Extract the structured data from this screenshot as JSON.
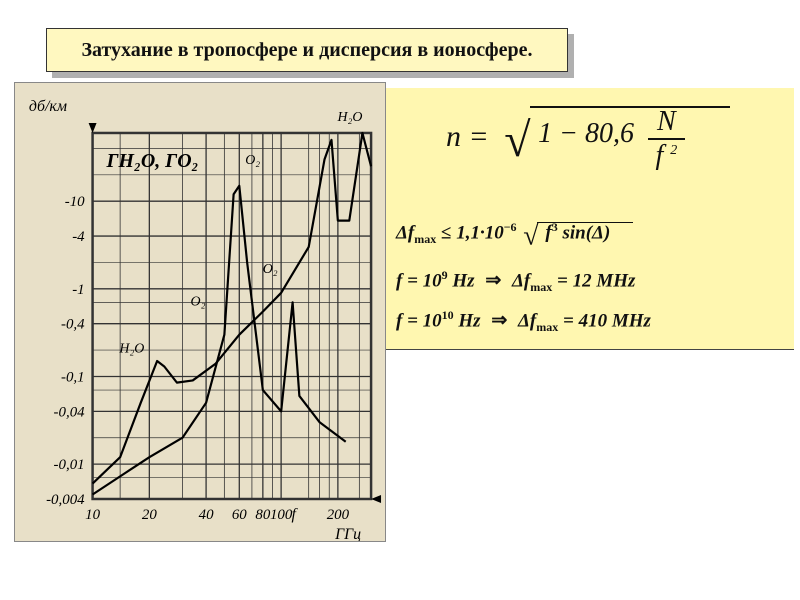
{
  "title": "Затухание в тропосфере и дисперсия в ионосфере.",
  "chart": {
    "type": "line",
    "background_color": "#e8e0c8",
    "grid_color": "#333333",
    "line_color": "#000000",
    "line_width": 2.2,
    "y_axis_label": "дб/км",
    "x_axis_label": "f",
    "x_unit": "ГГц",
    "curve_label": "ГH₂O, ГO₂",
    "x_ticks": [
      "10",
      "20",
      "40",
      "60",
      "80",
      "100",
      "200"
    ],
    "y_ticks": [
      "-10",
      "-4",
      "-1",
      "-0,4",
      "-0,1",
      "-0,04",
      "-0,01",
      "-0,004"
    ],
    "x_scale": "log",
    "y_scale": "log",
    "peak_labels": [
      "H₂O",
      "O₂",
      "O₂",
      "O₂",
      "H₂O"
    ],
    "curves": {
      "h2o": [
        [
          10,
          -0.006
        ],
        [
          14,
          -0.012
        ],
        [
          18,
          -0.05
        ],
        [
          22,
          -0.15
        ],
        [
          24,
          -0.13
        ],
        [
          28,
          -0.085
        ],
        [
          34,
          -0.09
        ],
        [
          45,
          -0.14
        ],
        [
          60,
          -0.3
        ],
        [
          80,
          -0.55
        ],
        [
          100,
          -0.9
        ],
        [
          140,
          -3
        ],
        [
          170,
          -30
        ],
        [
          185,
          -50
        ],
        [
          200,
          -6
        ],
        [
          230,
          -6
        ],
        [
          270,
          -60
        ],
        [
          300,
          -25
        ]
      ],
      "o2": [
        [
          10,
          -0.0045
        ],
        [
          15,
          -0.008
        ],
        [
          20,
          -0.012
        ],
        [
          30,
          -0.02
        ],
        [
          40,
          -0.05
        ],
        [
          50,
          -0.3
        ],
        [
          56,
          -12
        ],
        [
          60,
          -15
        ],
        [
          66,
          -2
        ],
        [
          80,
          -0.07
        ],
        [
          100,
          -0.04
        ],
        [
          115,
          -0.7
        ],
        [
          125,
          -0.06
        ],
        [
          160,
          -0.03
        ],
        [
          220,
          -0.018
        ]
      ]
    }
  },
  "formulas": {
    "main": {
      "lhs": "n =",
      "coeff": "1 − 80,6",
      "num": "N",
      "den_base": "f",
      "den_exp": "2"
    },
    "row1": {
      "delta_f": "Δf",
      "sub": "max",
      "op": "≤",
      "coeff": "1,1·10",
      "exp1": "−6",
      "under_sqrt_base": "f",
      "under_sqrt_exp": "3",
      "trig": "sin(Δ)"
    },
    "row2": {
      "f_lhs": "f = 10",
      "exp": "9",
      "unit": "Hz",
      "arrow": "⇒",
      "df": "Δf",
      "sub": "max",
      "eq": "= 12",
      "unit2": "MHz"
    },
    "row3": {
      "f_lhs": "f = 10",
      "exp": "10",
      "unit": "Hz",
      "arrow": "⇒",
      "df": "Δf",
      "sub": "max",
      "eq": "= 410",
      "unit2": "MHz"
    }
  },
  "colors": {
    "title_bg": "#fff8c0",
    "formula_bg": "#fff7b0",
    "shadow": "#b0b0b0",
    "text": "#111111"
  }
}
